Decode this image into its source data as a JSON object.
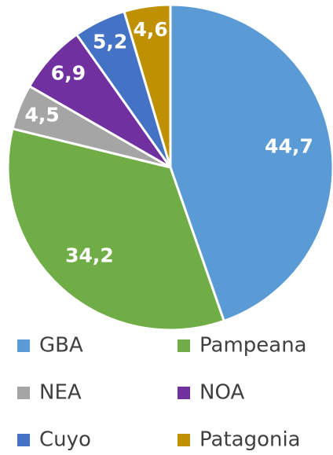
{
  "chart_data": {
    "type": "pie",
    "categories": [
      "GBA",
      "Pampeana",
      "NEA",
      "NOA",
      "Cuyo",
      "Patagonia"
    ],
    "values": [
      44.7,
      34.2,
      4.5,
      6.9,
      5.2,
      4.6
    ],
    "value_labels": [
      "44,7",
      "34,2",
      "4,5",
      "6,9",
      "5,2",
      "4,6"
    ],
    "colors": [
      "#5b9bd5",
      "#70ad47",
      "#a5a5a5",
      "#7030a0",
      "#4472c4",
      "#bf9000"
    ],
    "legend": "bottom"
  }
}
